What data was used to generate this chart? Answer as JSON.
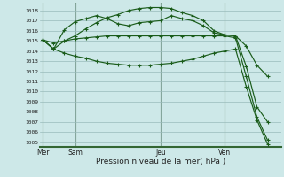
{
  "background_color": "#cde8e8",
  "grid_color": "#99bbbb",
  "line_color": "#1a5c1a",
  "ylim": [
    1004.5,
    1018.8
  ],
  "yticks": [
    1005,
    1006,
    1007,
    1008,
    1009,
    1010,
    1011,
    1012,
    1013,
    1014,
    1015,
    1016,
    1017,
    1018
  ],
  "xlabel": "Pression niveau de la mer( hPa )",
  "day_labels": [
    "Mer",
    "Sam",
    "Jeu",
    "Ven"
  ],
  "day_positions": [
    0,
    3,
    11,
    17
  ],
  "xlim": [
    -0.3,
    22.3
  ],
  "x_total": 22,
  "series": [
    {
      "x": [
        0,
        1,
        2,
        3,
        4,
        5,
        6,
        7,
        8,
        9,
        10,
        11,
        12,
        13,
        14,
        15,
        16,
        17,
        18,
        19,
        20,
        21
      ],
      "y": [
        1015.1,
        1014.2,
        1016.1,
        1016.9,
        1017.2,
        1017.5,
        1017.2,
        1016.7,
        1016.5,
        1016.8,
        1016.9,
        1017.0,
        1017.5,
        1017.2,
        1017.0,
        1016.5,
        1015.8,
        1015.6,
        1015.5,
        1014.5,
        1012.6,
        1011.5
      ],
      "marker": "+"
    },
    {
      "x": [
        0,
        1,
        2,
        3,
        4,
        5,
        6,
        7,
        8,
        9,
        10,
        11,
        12,
        13,
        14,
        15,
        16,
        17,
        18,
        19,
        20,
        21
      ],
      "y": [
        1015.1,
        1014.2,
        1015.0,
        1015.5,
        1016.2,
        1016.8,
        1017.3,
        1017.6,
        1018.0,
        1018.2,
        1018.3,
        1018.3,
        1018.2,
        1017.8,
        1017.5,
        1017.0,
        1016.0,
        1015.6,
        1015.5,
        1012.5,
        1008.5,
        1007.0
      ],
      "marker": "+"
    },
    {
      "x": [
        0,
        1,
        2,
        3,
        4,
        5,
        6,
        7,
        8,
        9,
        10,
        11,
        12,
        13,
        14,
        15,
        16,
        17,
        18,
        19,
        20,
        21
      ],
      "y": [
        1015.1,
        1014.8,
        1015.0,
        1015.2,
        1015.3,
        1015.4,
        1015.5,
        1015.5,
        1015.5,
        1015.5,
        1015.5,
        1015.5,
        1015.5,
        1015.5,
        1015.5,
        1015.5,
        1015.5,
        1015.5,
        1015.3,
        1011.5,
        1007.5,
        1005.2
      ],
      "marker": "+"
    },
    {
      "x": [
        0,
        1,
        2,
        3,
        4,
        5,
        6,
        7,
        8,
        9,
        10,
        11,
        12,
        13,
        14,
        15,
        16,
        17,
        18,
        19,
        20,
        21
      ],
      "y": [
        1015.1,
        1014.2,
        1013.8,
        1013.5,
        1013.3,
        1013.0,
        1012.8,
        1012.7,
        1012.6,
        1012.6,
        1012.6,
        1012.7,
        1012.8,
        1013.0,
        1013.2,
        1013.5,
        1013.8,
        1014.0,
        1014.2,
        1010.5,
        1007.2,
        1004.8
      ],
      "marker": "+"
    }
  ]
}
